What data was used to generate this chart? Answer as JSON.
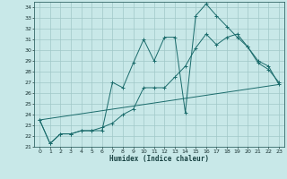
{
  "xlabel": "Humidex (Indice chaleur)",
  "bg_color": "#c8e8e8",
  "grid_color": "#a0c8c8",
  "line_color": "#1a6b6b",
  "xlim": [
    -0.5,
    23.5
  ],
  "ylim": [
    21,
    34.5
  ],
  "yticks": [
    21,
    22,
    23,
    24,
    25,
    26,
    27,
    28,
    29,
    30,
    31,
    32,
    33,
    34
  ],
  "xticks": [
    0,
    1,
    2,
    3,
    4,
    5,
    6,
    7,
    8,
    9,
    10,
    11,
    12,
    13,
    14,
    15,
    16,
    17,
    18,
    19,
    20,
    21,
    22,
    23
  ],
  "line1_x": [
    0,
    1,
    2,
    3,
    4,
    5,
    6,
    7,
    8,
    9,
    10,
    11,
    12,
    13,
    14,
    15,
    16,
    17,
    18,
    19,
    20,
    21,
    22,
    23
  ],
  "line1_y": [
    23.5,
    21.3,
    22.2,
    22.2,
    22.5,
    22.5,
    22.5,
    27.0,
    26.5,
    28.8,
    31.0,
    29.0,
    31.2,
    31.2,
    24.2,
    33.2,
    34.3,
    33.2,
    32.2,
    31.2,
    30.3,
    28.8,
    28.2,
    27.0
  ],
  "line2_x": [
    0,
    1,
    2,
    3,
    4,
    5,
    6,
    7,
    8,
    9,
    10,
    11,
    12,
    13,
    14,
    15,
    16,
    17,
    18,
    19,
    20,
    21,
    22,
    23
  ],
  "line2_y": [
    23.5,
    21.3,
    22.2,
    22.2,
    22.5,
    22.5,
    22.8,
    23.2,
    24.0,
    24.5,
    26.5,
    26.5,
    26.5,
    27.5,
    28.5,
    30.2,
    31.5,
    30.5,
    31.2,
    31.5,
    30.3,
    29.0,
    28.5,
    26.8
  ],
  "line3_x": [
    0,
    23
  ],
  "line3_y": [
    23.5,
    26.8
  ]
}
